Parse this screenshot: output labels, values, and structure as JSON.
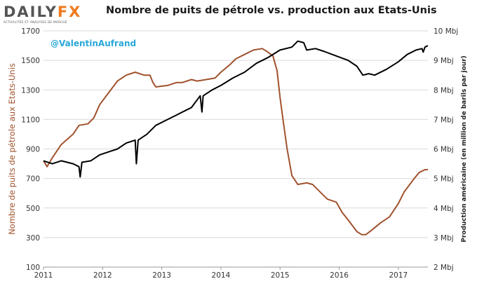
{
  "logo": {
    "part_a": "DAILY",
    "part_b": "FX",
    "tagline": "ACTUALITÉS ET ANALYSES DE MARCHÉ",
    "accent": "#f07a1e"
  },
  "header": {
    "title": "Nombre de puits de pétrole vs. production aux Etats-Unis"
  },
  "annotation": {
    "handle": "@ValentinAufrand",
    "color": "#29a8d8"
  },
  "colors": {
    "rig_count": "#a0522d",
    "production": "#000000",
    "grid": "#d9d9d9"
  },
  "chart_data": {
    "type": "line",
    "title": "Nombre de puits de pétrole vs. production aux Etats-Unis",
    "xlabel": "",
    "ylabel": "Nombre de puits de pétrole aux Etats-Unis",
    "y2label": "Production américaine (en million de barils par jour)",
    "xlim": [
      2011.0,
      2017.5
    ],
    "ylim": [
      100,
      1700
    ],
    "y2lim": [
      2,
      10
    ],
    "grid": true,
    "x_ticks": [
      "2011",
      "2012",
      "2013",
      "2014",
      "2015",
      "2016",
      "2017"
    ],
    "y_ticks": [
      "100",
      "300",
      "500",
      "700",
      "900",
      "1100",
      "1300",
      "1500",
      "1700"
    ],
    "y2_ticks": [
      "2 Mbj",
      "3 Mbj",
      "4 Mbj",
      "5 Mbj",
      "6 Mbj",
      "7 Mbj",
      "8 Mbj",
      "9 Mbj",
      "10 Mbj"
    ],
    "series": [
      {
        "axis": "left",
        "color": "#a0522d",
        "points": [
          [
            2011.0,
            820
          ],
          [
            2011.06,
            780
          ],
          [
            2011.15,
            840
          ],
          [
            2011.3,
            930
          ],
          [
            2011.5,
            1000
          ],
          [
            2011.6,
            1060
          ],
          [
            2011.75,
            1070
          ],
          [
            2011.85,
            1110
          ],
          [
            2011.95,
            1200
          ],
          [
            2012.1,
            1280
          ],
          [
            2012.25,
            1360
          ],
          [
            2012.4,
            1400
          ],
          [
            2012.55,
            1420
          ],
          [
            2012.7,
            1400
          ],
          [
            2012.8,
            1400
          ],
          [
            2012.85,
            1350
          ],
          [
            2012.9,
            1320
          ],
          [
            2013.1,
            1330
          ],
          [
            2013.25,
            1350
          ],
          [
            2013.35,
            1350
          ],
          [
            2013.5,
            1370
          ],
          [
            2013.6,
            1360
          ],
          [
            2013.75,
            1370
          ],
          [
            2013.9,
            1380
          ],
          [
            2014.0,
            1420
          ],
          [
            2014.15,
            1470
          ],
          [
            2014.25,
            1510
          ],
          [
            2014.4,
            1540
          ],
          [
            2014.55,
            1570
          ],
          [
            2014.7,
            1580
          ],
          [
            2014.78,
            1560
          ],
          [
            2014.88,
            1530
          ],
          [
            2014.95,
            1430
          ],
          [
            2015.0,
            1250
          ],
          [
            2015.05,
            1100
          ],
          [
            2015.12,
            900
          ],
          [
            2015.2,
            720
          ],
          [
            2015.3,
            660
          ],
          [
            2015.45,
            670
          ],
          [
            2015.55,
            660
          ],
          [
            2015.7,
            600
          ],
          [
            2015.8,
            560
          ],
          [
            2015.95,
            540
          ],
          [
            2016.05,
            470
          ],
          [
            2016.15,
            420
          ],
          [
            2016.3,
            340
          ],
          [
            2016.38,
            320
          ],
          [
            2016.45,
            320
          ],
          [
            2016.55,
            350
          ],
          [
            2016.7,
            400
          ],
          [
            2016.85,
            440
          ],
          [
            2017.0,
            530
          ],
          [
            2017.1,
            610
          ],
          [
            2017.25,
            690
          ],
          [
            2017.35,
            740
          ],
          [
            2017.45,
            760
          ],
          [
            2017.5,
            760
          ]
        ]
      },
      {
        "axis": "right",
        "color": "#000000",
        "points": [
          [
            2011.0,
            5.6
          ],
          [
            2011.15,
            5.5
          ],
          [
            2011.3,
            5.6
          ],
          [
            2011.5,
            5.5
          ],
          [
            2011.6,
            5.4
          ],
          [
            2011.62,
            5.05
          ],
          [
            2011.65,
            5.55
          ],
          [
            2011.8,
            5.6
          ],
          [
            2011.95,
            5.8
          ],
          [
            2012.1,
            5.9
          ],
          [
            2012.25,
            6.0
          ],
          [
            2012.4,
            6.2
          ],
          [
            2012.55,
            6.3
          ],
          [
            2012.57,
            5.5
          ],
          [
            2012.6,
            6.3
          ],
          [
            2012.75,
            6.5
          ],
          [
            2012.9,
            6.8
          ],
          [
            2013.1,
            7.0
          ],
          [
            2013.25,
            7.15
          ],
          [
            2013.4,
            7.3
          ],
          [
            2013.5,
            7.4
          ],
          [
            2013.65,
            7.8
          ],
          [
            2013.68,
            7.25
          ],
          [
            2013.7,
            7.8
          ],
          [
            2013.85,
            8.0
          ],
          [
            2014.0,
            8.15
          ],
          [
            2014.2,
            8.4
          ],
          [
            2014.4,
            8.6
          ],
          [
            2014.6,
            8.9
          ],
          [
            2014.8,
            9.1
          ],
          [
            2015.0,
            9.35
          ],
          [
            2015.2,
            9.45
          ],
          [
            2015.3,
            9.65
          ],
          [
            2015.4,
            9.6
          ],
          [
            2015.45,
            9.35
          ],
          [
            2015.6,
            9.4
          ],
          [
            2015.75,
            9.3
          ],
          [
            2015.95,
            9.15
          ],
          [
            2016.15,
            9.0
          ],
          [
            2016.3,
            8.8
          ],
          [
            2016.4,
            8.5
          ],
          [
            2016.5,
            8.55
          ],
          [
            2016.6,
            8.5
          ],
          [
            2016.8,
            8.7
          ],
          [
            2017.0,
            8.95
          ],
          [
            2017.15,
            9.2
          ],
          [
            2017.3,
            9.35
          ],
          [
            2017.4,
            9.4
          ],
          [
            2017.42,
            9.28
          ],
          [
            2017.45,
            9.45
          ],
          [
            2017.5,
            9.5
          ]
        ]
      }
    ]
  }
}
